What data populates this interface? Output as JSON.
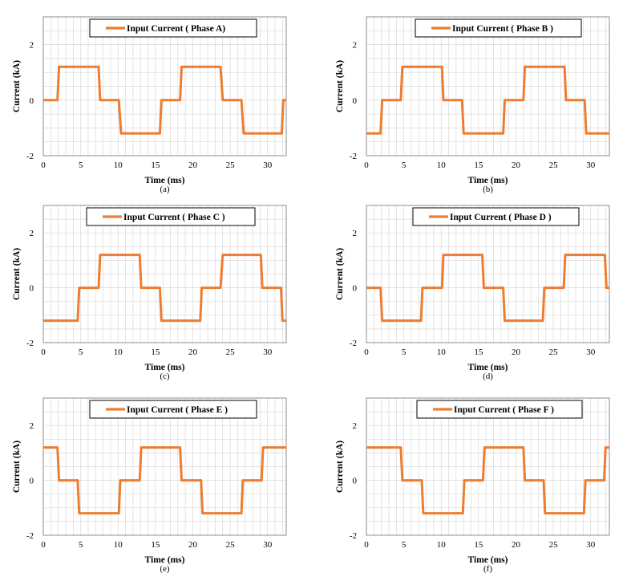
{
  "line_color": "#ed7d31",
  "grid_color": "#d9d9d9",
  "chart_data": [
    {
      "type": "line",
      "panel_label": "(a)",
      "xlabel": "Time (ms)",
      "ylabel": "Current (kA)",
      "xlim": [
        0,
        32.5
      ],
      "ylim": [
        -2,
        3
      ],
      "xticks": [
        "0",
        "5",
        "10",
        "15",
        "20",
        "25",
        "30"
      ],
      "yticks": [
        "-2",
        "0",
        "2"
      ],
      "grid": true,
      "legend_position": "top",
      "series": [
        {
          "name": "Input Current ( Phase A)",
          "x": [
            0,
            1.9,
            2.1,
            7.4,
            7.6,
            10.1,
            10.4,
            15.6,
            15.8,
            18.3,
            18.5,
            23.7,
            24.0,
            26.5,
            26.8,
            31.9,
            32.1,
            32.5
          ],
          "y": [
            0,
            0,
            1.2,
            1.2,
            0,
            0,
            -1.2,
            -1.2,
            0,
            0,
            1.2,
            1.2,
            0,
            0,
            -1.2,
            -1.2,
            0,
            0
          ]
        }
      ]
    },
    {
      "type": "line",
      "panel_label": "(b)",
      "xlabel": "Time (ms)",
      "ylabel": "Current (kA)",
      "xlim": [
        0,
        32.5
      ],
      "ylim": [
        -2,
        3
      ],
      "xticks": [
        "0",
        "5",
        "10",
        "15",
        "20",
        "25",
        "30"
      ],
      "yticks": [
        "-2",
        "0",
        "2"
      ],
      "grid": true,
      "legend_position": "top",
      "series": [
        {
          "name": "Input Current ( Phase B )",
          "x": [
            0,
            1.9,
            2.1,
            4.6,
            4.8,
            10.1,
            10.3,
            12.8,
            13.0,
            18.3,
            18.5,
            21.0,
            21.2,
            26.5,
            26.7,
            29.2,
            29.4,
            32.5
          ],
          "y": [
            -1.2,
            -1.2,
            0,
            0,
            1.2,
            1.2,
            0,
            0,
            -1.2,
            -1.2,
            0,
            0,
            1.2,
            1.2,
            0,
            0,
            -1.2,
            -1.2
          ]
        }
      ]
    },
    {
      "type": "line",
      "panel_label": "(c)",
      "xlabel": "Time (ms)",
      "ylabel": "Current (kA)",
      "xlim": [
        0,
        32.5
      ],
      "ylim": [
        -2,
        3
      ],
      "xticks": [
        "0",
        "5",
        "10",
        "15",
        "20",
        "25",
        "30"
      ],
      "yticks": [
        "-2",
        "0",
        "2"
      ],
      "grid": true,
      "legend_position": "top",
      "series": [
        {
          "name": "Input Current ( Phase C )",
          "x": [
            0,
            4.6,
            4.8,
            7.4,
            7.6,
            12.9,
            13.1,
            15.6,
            15.8,
            21.0,
            21.2,
            23.7,
            24.0,
            29.1,
            29.3,
            31.8,
            32.0,
            32.5
          ],
          "y": [
            -1.2,
            -1.2,
            0,
            0,
            1.2,
            1.2,
            0,
            0,
            -1.2,
            -1.2,
            0,
            0,
            1.2,
            1.2,
            0,
            0,
            -1.2,
            -1.2
          ]
        }
      ]
    },
    {
      "type": "line",
      "panel_label": "(d)",
      "xlabel": "Time (ms)",
      "ylabel": "Current (kA)",
      "xlim": [
        0,
        32.5
      ],
      "ylim": [
        -2,
        3
      ],
      "xticks": [
        "0",
        "5",
        "10",
        "15",
        "20",
        "25",
        "30"
      ],
      "yticks": [
        "-2",
        "0",
        "2"
      ],
      "grid": true,
      "legend_position": "top",
      "series": [
        {
          "name": "Input Current ( Phase D )",
          "x": [
            0,
            1.9,
            2.1,
            7.3,
            7.5,
            10.1,
            10.3,
            15.5,
            15.7,
            18.3,
            18.5,
            23.6,
            23.8,
            26.4,
            26.6,
            31.9,
            32.1,
            32.5
          ],
          "y": [
            0,
            0,
            -1.2,
            -1.2,
            0,
            0,
            1.2,
            1.2,
            0,
            0,
            -1.2,
            -1.2,
            0,
            0,
            1.2,
            1.2,
            0,
            0
          ]
        }
      ]
    },
    {
      "type": "line",
      "panel_label": "(e)",
      "xlabel": "Time (ms)",
      "ylabel": "Current (kA)",
      "xlim": [
        0,
        32.5
      ],
      "ylim": [
        -2,
        3
      ],
      "xticks": [
        "0",
        "5",
        "10",
        "15",
        "20",
        "25",
        "30"
      ],
      "yticks": [
        "-2",
        "0",
        "2"
      ],
      "grid": true,
      "legend_position": "top",
      "series": [
        {
          "name": "Input Current ( Phase E )",
          "x": [
            0,
            1.9,
            2.1,
            4.6,
            4.8,
            10.1,
            10.3,
            12.9,
            13.1,
            18.3,
            18.5,
            21.1,
            21.3,
            26.5,
            26.7,
            29.2,
            29.4,
            32.5
          ],
          "y": [
            1.2,
            1.2,
            0,
            0,
            -1.2,
            -1.2,
            0,
            0,
            1.2,
            1.2,
            0,
            0,
            -1.2,
            -1.2,
            0,
            0,
            1.2,
            1.2
          ]
        }
      ]
    },
    {
      "type": "line",
      "panel_label": "(f)",
      "xlabel": "Time (ms)",
      "ylabel": "Current (kA)",
      "xlim": [
        0,
        32.5
      ],
      "ylim": [
        -2,
        3
      ],
      "xticks": [
        "0",
        "5",
        "10",
        "15",
        "20",
        "25",
        "30"
      ],
      "yticks": [
        "-2",
        "0",
        "2"
      ],
      "grid": true,
      "legend_position": "top",
      "series": [
        {
          "name": "Input Current ( Phase F )",
          "x": [
            0,
            4.6,
            4.8,
            7.4,
            7.6,
            12.9,
            13.1,
            15.6,
            15.8,
            21.0,
            21.2,
            23.7,
            23.9,
            29.1,
            29.3,
            31.8,
            32.0,
            32.5
          ],
          "y": [
            1.2,
            1.2,
            0,
            0,
            -1.2,
            -1.2,
            0,
            0,
            1.2,
            1.2,
            0,
            0,
            -1.2,
            -1.2,
            0,
            0,
            1.2,
            1.2
          ]
        }
      ]
    }
  ]
}
